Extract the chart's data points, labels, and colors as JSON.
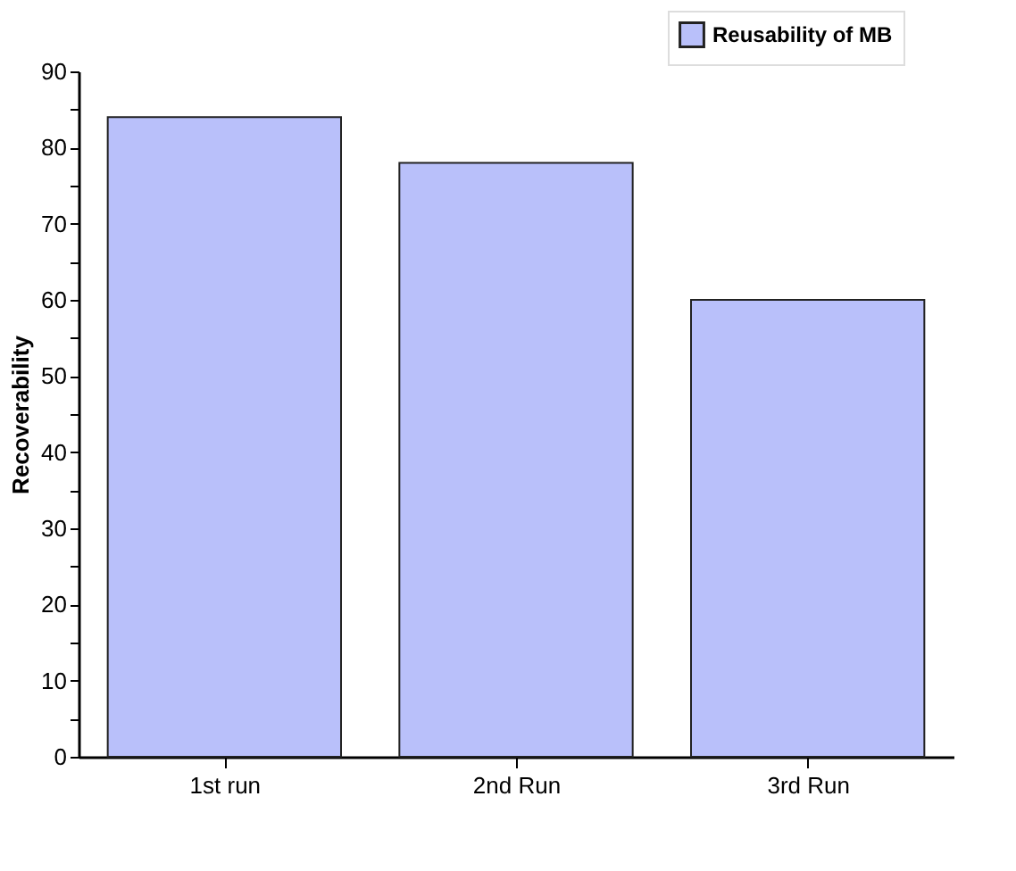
{
  "chart_data": {
    "type": "bar",
    "ylabel": "Recoverability",
    "categories": [
      "1st run",
      "2nd Run",
      "3rd Run"
    ],
    "series": [
      {
        "name": "Reusability of MB",
        "color": "#b9c0fa",
        "values": [
          84,
          78,
          60
        ]
      }
    ],
    "ylim": [
      0,
      90
    ],
    "yticks": [
      0,
      {
        "value": 5,
        "label": null
      },
      10,
      {
        "value": 15,
        "label": null
      },
      20,
      {
        "value": 25,
        "label": null
      },
      30,
      {
        "value": 35,
        "label": null
      },
      40,
      {
        "value": 45,
        "label": null
      },
      50,
      {
        "value": 55,
        "label": null
      },
      60,
      {
        "value": 65,
        "label": null
      },
      70,
      {
        "value": 75,
        "label": null
      },
      80,
      {
        "value": 85,
        "label": null
      },
      90
    ],
    "grid": false,
    "legend": "top right"
  }
}
